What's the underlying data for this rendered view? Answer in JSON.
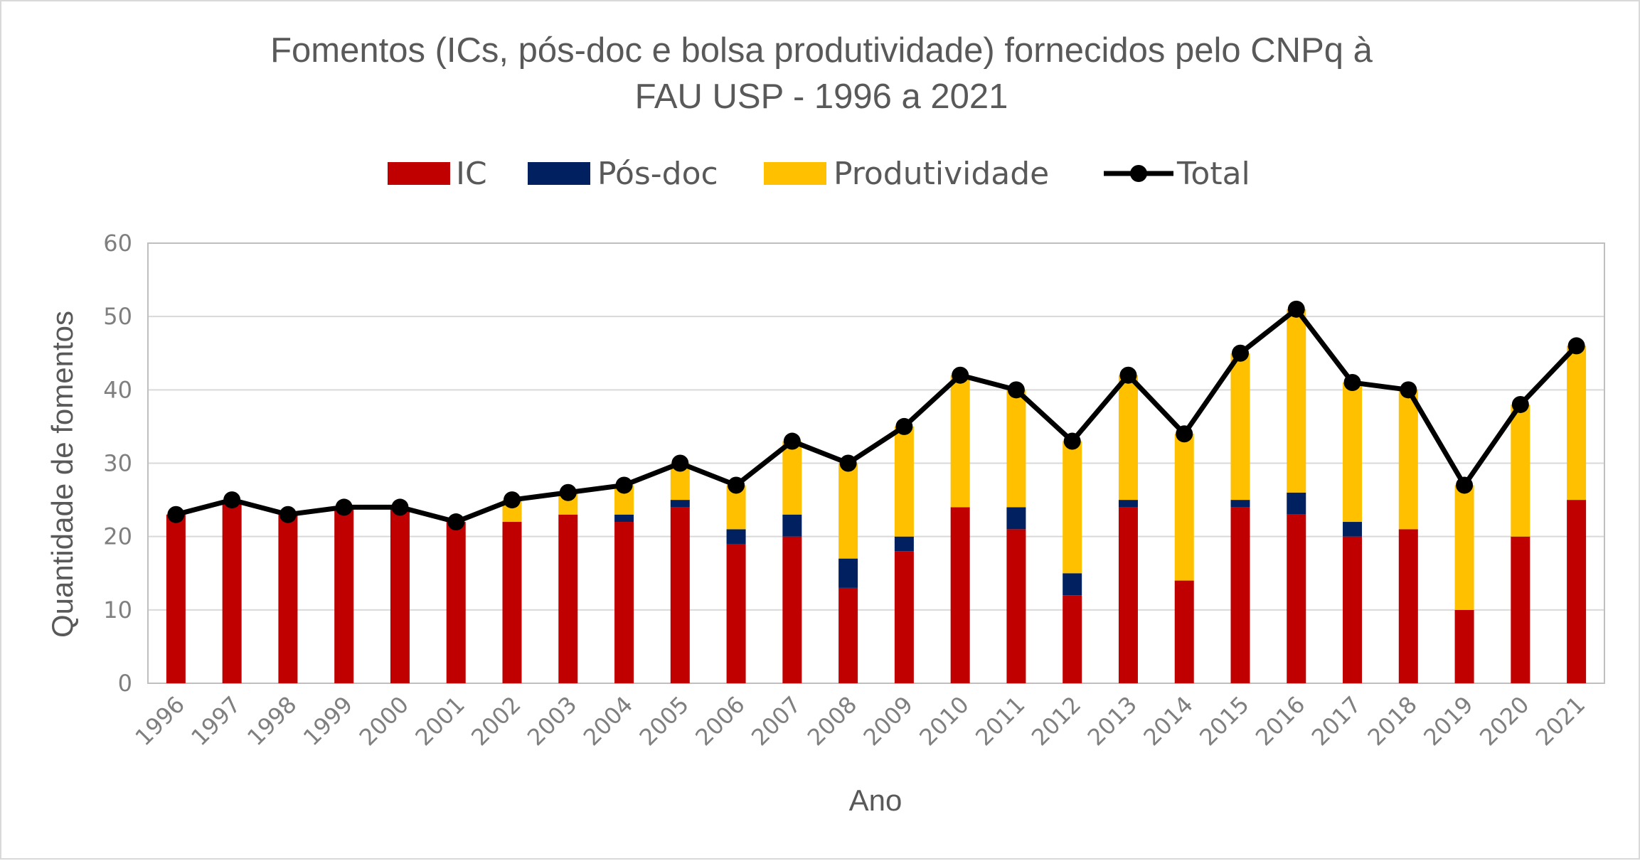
{
  "chart_data": {
    "type": "bar",
    "stacked": true,
    "title_lines": [
      "Fomentos (ICs, pós-doc e bolsa produtividade) fornecidos pelo CNPq à",
      "FAU USP - 1996 a 2021"
    ],
    "xlabel": "Ano",
    "ylabel": "Quantidade de fomentos",
    "ylim": [
      0,
      60
    ],
    "yticks": [
      "0",
      "10",
      "20",
      "30",
      "40",
      "50",
      "60"
    ],
    "grid": true,
    "legend_position": "top",
    "categories": [
      "1996",
      "1997",
      "1998",
      "1999",
      "2000",
      "2001",
      "2002",
      "2003",
      "2004",
      "2005",
      "2006",
      "2007",
      "2008",
      "2009",
      "2010",
      "2011",
      "2012",
      "2013",
      "2014",
      "2015",
      "2016",
      "2017",
      "2018",
      "2019",
      "2020",
      "2021"
    ],
    "series": [
      {
        "name": "IC",
        "type": "bar",
        "color": "#c00000",
        "values": [
          23,
          25,
          23,
          24,
          24,
          22,
          22,
          23,
          22,
          24,
          19,
          20,
          13,
          18,
          24,
          21,
          12,
          24,
          14,
          24,
          23,
          20,
          21,
          10,
          20,
          25
        ]
      },
      {
        "name": "Pós-doc",
        "type": "bar",
        "color": "#002060",
        "values": [
          0,
          0,
          0,
          0,
          0,
          0,
          0,
          0,
          1,
          1,
          2,
          3,
          4,
          2,
          0,
          3,
          3,
          1,
          0,
          1,
          3,
          2,
          0,
          0,
          0,
          0
        ]
      },
      {
        "name": "Produtividade",
        "type": "bar",
        "color": "#ffc000",
        "values": [
          0,
          0,
          0,
          0,
          0,
          0,
          3,
          3,
          4,
          5,
          6,
          10,
          13,
          15,
          18,
          16,
          18,
          17,
          20,
          20,
          25,
          19,
          19,
          17,
          18,
          21
        ]
      },
      {
        "name": "Total",
        "type": "line",
        "color": "#000000",
        "values": [
          23,
          25,
          23,
          24,
          24,
          22,
          25,
          26,
          27,
          30,
          27,
          33,
          30,
          35,
          42,
          40,
          33,
          42,
          34,
          45,
          51,
          41,
          40,
          27,
          38,
          46
        ]
      }
    ]
  }
}
